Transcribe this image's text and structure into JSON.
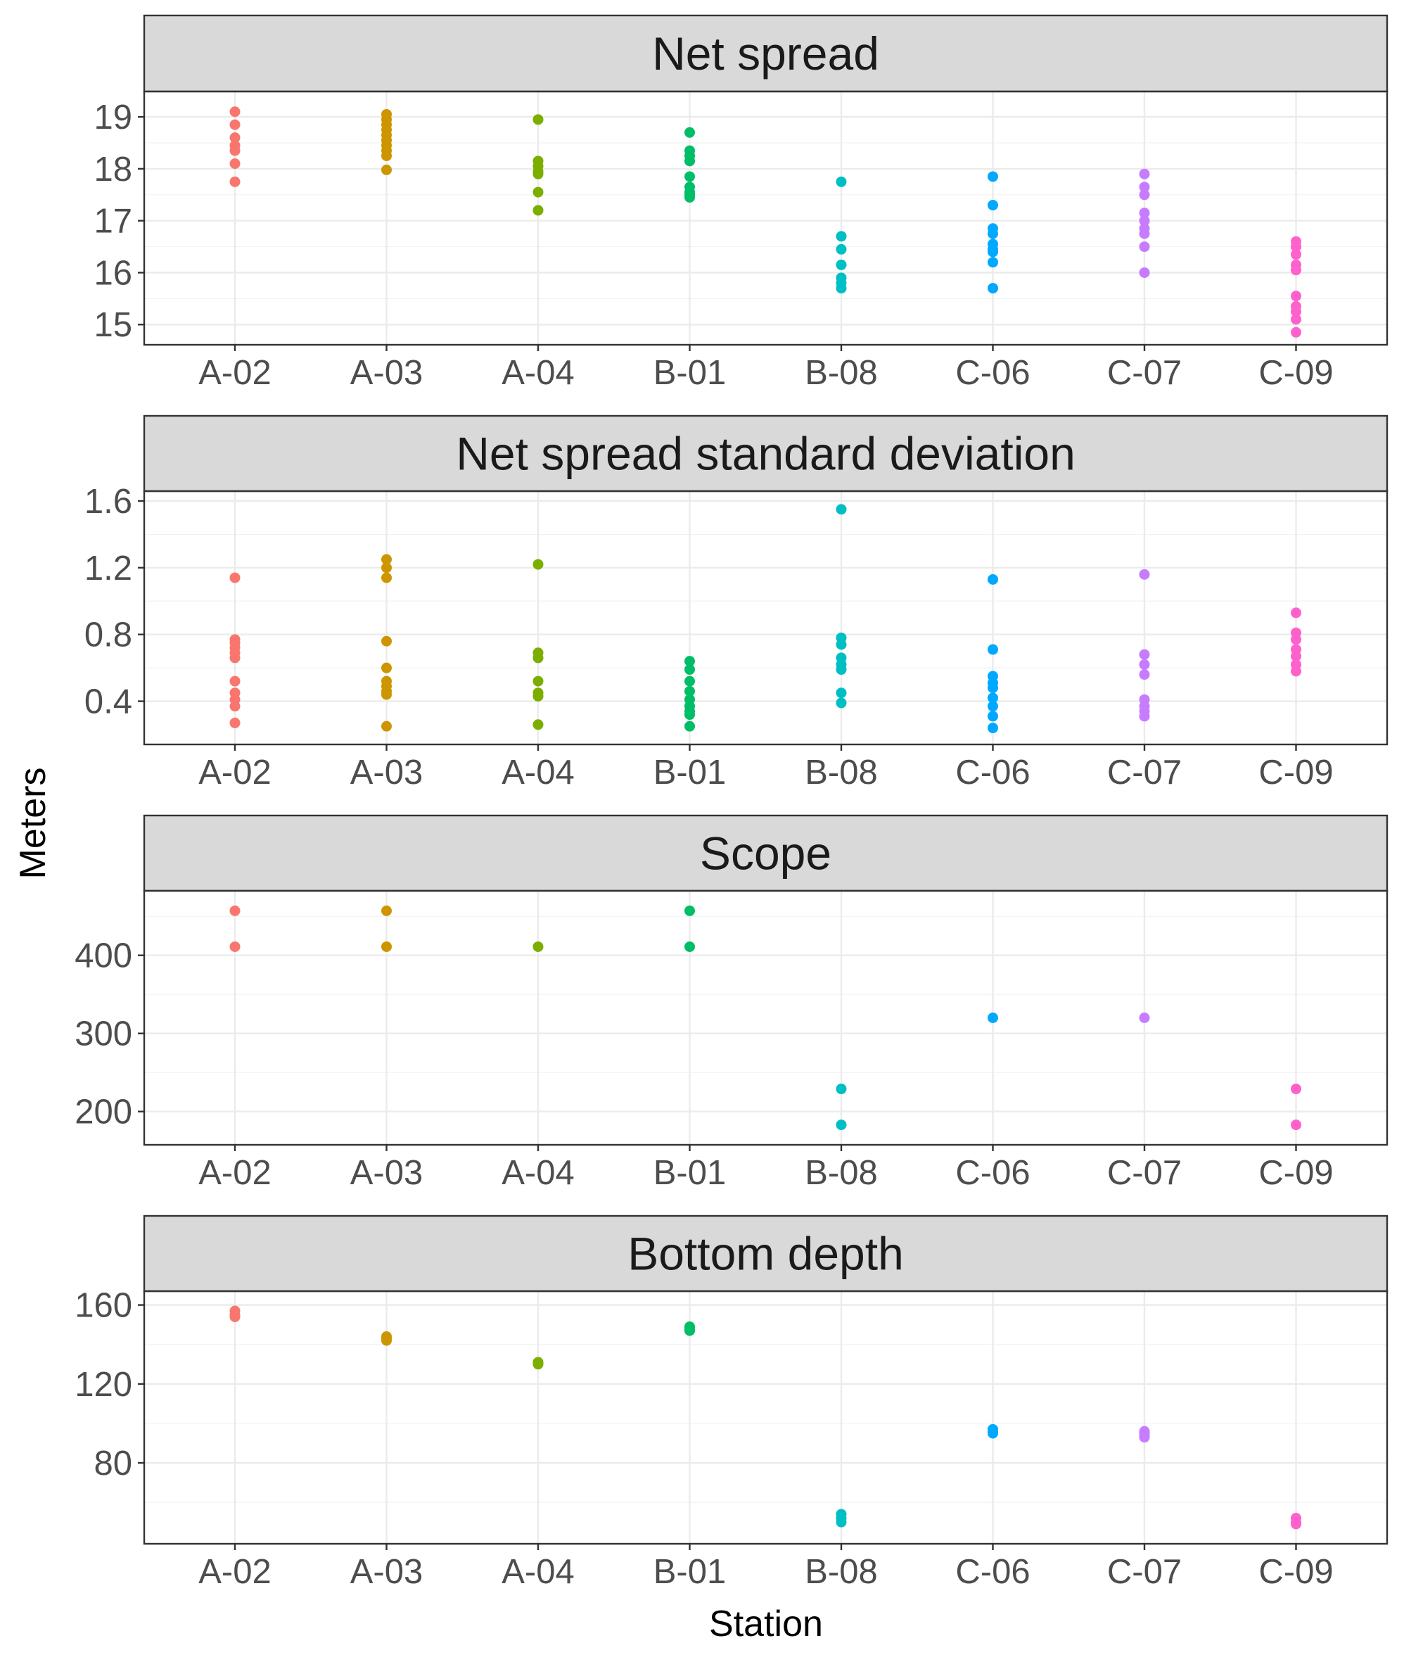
{
  "chart_data": {
    "type": "scatter",
    "xlabel": "Station",
    "ylabel": "Meters",
    "categories": [
      "A-02",
      "A-03",
      "A-04",
      "B-01",
      "B-08",
      "C-06",
      "C-07",
      "C-09"
    ],
    "colors": [
      "#F8766D",
      "#CD9600",
      "#7CAE00",
      "#00BE67",
      "#00BFC4",
      "#00A9FF",
      "#C77CFF",
      "#FF61CC"
    ],
    "grid": true,
    "legend": "none",
    "panels": [
      {
        "title": "Net spread",
        "ylim": [
          14.8,
          19.3
        ],
        "yticks": [
          15,
          16,
          17,
          18,
          19
        ],
        "ytick_labels": [
          "15",
          "16",
          "17",
          "18",
          "19"
        ],
        "minor_ticks": [
          15.5,
          16.5,
          17.5,
          18.5
        ],
        "points": {
          "A-02": [
            19.1,
            18.85,
            18.6,
            18.45,
            18.35,
            18.1,
            17.75
          ],
          "A-03": [
            19.05,
            18.95,
            18.85,
            18.75,
            18.65,
            18.55,
            18.45,
            18.35,
            18.25,
            17.98
          ],
          "A-04": [
            18.95,
            18.15,
            18.05,
            17.95,
            17.9,
            17.55,
            17.2
          ],
          "B-01": [
            18.7,
            18.35,
            18.25,
            18.15,
            17.85,
            17.65,
            17.55,
            17.5,
            17.45
          ],
          "B-08": [
            17.75,
            16.7,
            16.45,
            16.15,
            15.9,
            15.8,
            15.7
          ],
          "C-06": [
            17.85,
            17.3,
            16.85,
            16.75,
            16.55,
            16.45,
            16.4,
            16.2,
            15.7
          ],
          "C-07": [
            17.9,
            17.65,
            17.5,
            17.15,
            17.0,
            16.85,
            16.75,
            16.5,
            16.0
          ],
          "C-09": [
            16.6,
            16.5,
            16.35,
            16.15,
            16.05,
            15.55,
            15.35,
            15.25,
            15.1,
            14.85
          ]
        }
      },
      {
        "title": "Net spread standard deviation",
        "ylim": [
          0.2,
          1.6
        ],
        "yticks": [
          0.4,
          0.8,
          1.2,
          1.6
        ],
        "ytick_labels": [
          "0.4",
          "0.8",
          "1.2",
          "1.6"
        ],
        "minor_ticks": [
          0.6,
          1.0,
          1.4
        ],
        "points": {
          "A-02": [
            1.14,
            0.77,
            0.75,
            0.72,
            0.69,
            0.66,
            0.52,
            0.45,
            0.41,
            0.37,
            0.27
          ],
          "A-03": [
            1.25,
            1.2,
            1.14,
            0.76,
            0.6,
            0.52,
            0.49,
            0.46,
            0.44,
            0.25
          ],
          "A-04": [
            1.22,
            0.69,
            0.66,
            0.52,
            0.45,
            0.43,
            0.26
          ],
          "B-01": [
            0.64,
            0.59,
            0.52,
            0.46,
            0.41,
            0.37,
            0.34,
            0.32,
            0.25
          ],
          "B-08": [
            1.55,
            0.78,
            0.74,
            0.66,
            0.62,
            0.59,
            0.45,
            0.39
          ],
          "C-06": [
            1.13,
            0.71,
            0.55,
            0.51,
            0.48,
            0.42,
            0.37,
            0.31,
            0.24
          ],
          "C-07": [
            1.16,
            0.68,
            0.62,
            0.56,
            0.41,
            0.37,
            0.34,
            0.31
          ],
          "C-09": [
            0.93,
            0.81,
            0.77,
            0.71,
            0.67,
            0.62,
            0.58
          ]
        }
      },
      {
        "title": "Scope",
        "ylim": [
          170,
          470
        ],
        "yticks": [
          200,
          300,
          400
        ],
        "ytick_labels": [
          "200",
          "300",
          "400"
        ],
        "minor_ticks": [
          250,
          350,
          450
        ],
        "points": {
          "A-02": [
            457,
            411
          ],
          "A-03": [
            457,
            411
          ],
          "A-04": [
            411
          ],
          "B-01": [
            457,
            411
          ],
          "B-08": [
            229,
            183
          ],
          "C-06": [
            320
          ],
          "C-07": [
            320
          ],
          "C-09": [
            229,
            183
          ]
        }
      },
      {
        "title": "Bottom depth",
        "ylim": [
          44,
          162
        ],
        "yticks": [
          80,
          120,
          160
        ],
        "ytick_labels": [
          "80",
          "120",
          "160"
        ],
        "minor_ticks": [
          60,
          100,
          140
        ],
        "points": {
          "A-02": [
            157,
            155,
            154
          ],
          "A-03": [
            144,
            143,
            142
          ],
          "A-04": [
            131,
            130
          ],
          "B-01": [
            149,
            148,
            147
          ],
          "B-08": [
            54,
            52,
            50
          ],
          "C-06": [
            97,
            96,
            95
          ],
          "C-07": [
            96,
            95,
            94,
            93
          ],
          "C-09": [
            52,
            50,
            49
          ]
        }
      }
    ]
  }
}
